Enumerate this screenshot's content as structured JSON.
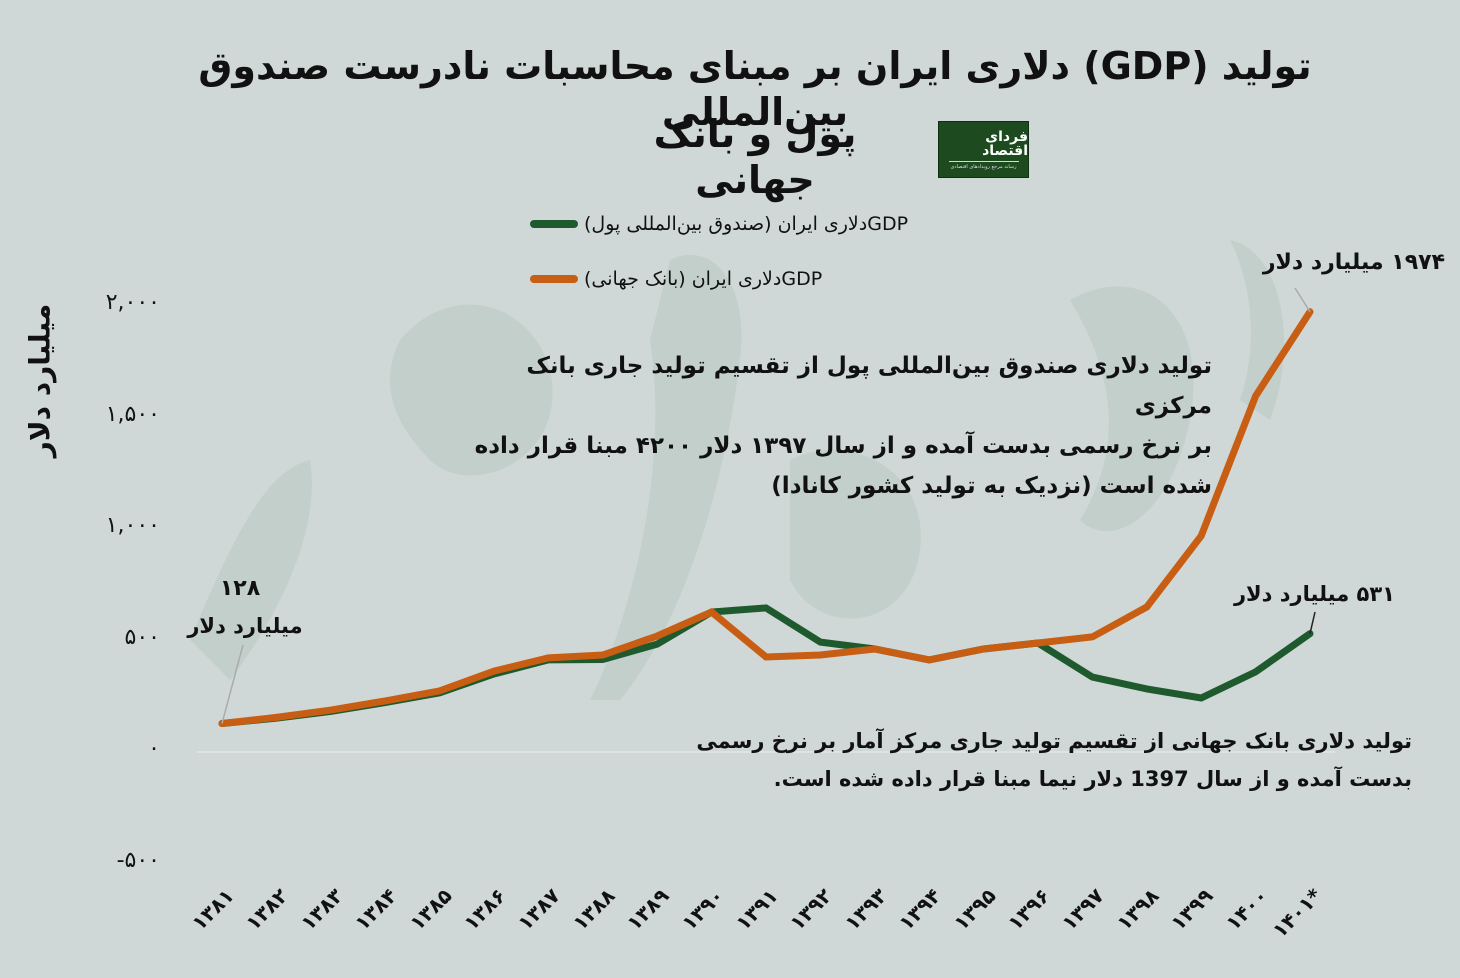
{
  "title": {
    "line1": "تولید (GDP) دلاری ایران بر مبنای محاسبات نادرست صندوق بین‌المللی",
    "line2": "پول و بانک جهانی"
  },
  "logo": {
    "name": "فردای اقتصاد",
    "tagline": "رسانه مرجع رویدادهای اقتصادی",
    "bg_color": "#1d4a1f"
  },
  "legend": [
    {
      "label": "GDPدلاری ایران (صندوق بین‌المللی پول)",
      "color": "#1e5a2e"
    },
    {
      "label": "GDPدلاری ایران (بانک جهانی)",
      "color": "#c85e14"
    }
  ],
  "y_axis": {
    "label": "میلیارد دلار",
    "ticks": [
      {
        "value": 2000,
        "label": "۲,۰۰۰"
      },
      {
        "value": 1500,
        "label": "۱,۵۰۰"
      },
      {
        "value": 1000,
        "label": "۱,۰۰۰"
      },
      {
        "value": 500,
        "label": "۵۰۰"
      },
      {
        "value": 0,
        "label": "۰"
      },
      {
        "value": -500,
        "label": "-۵۰۰"
      }
    ]
  },
  "x_axis": {
    "labels": [
      "۱۳۸۱",
      "۱۳۸۲",
      "۱۳۸۳",
      "۱۳۸۴",
      "۱۳۸۵",
      "۱۳۸۶",
      "۱۳۸۷",
      "۱۳۸۸",
      "۱۳۸۹",
      "۱۳۹۰",
      "۱۳۹۱",
      "۱۳۹۲",
      "۱۳۹۳",
      "۱۳۹۴",
      "۱۳۹۵",
      "۱۳۹۶",
      "۱۳۹۷",
      "۱۳۹۸",
      "۱۳۹۹",
      "۱۴۰۰",
      "۱۴۰۱*"
    ]
  },
  "annotations": {
    "start": {
      "value": "۱۲۸",
      "unit": "میلیارد دلار"
    },
    "wb_end": {
      "text": "۱۹۷۴ میلیارد دلار"
    },
    "imf_end": {
      "text": "۵۳۱ میلیارد دلار"
    }
  },
  "notes": {
    "imf": [
      "تولید دلاری صندوق بین‌المللی پول از تقسیم تولید جاری بانک مرکزی",
      "بر نرخ رسمی بدست آمده و از سال ۱۳۹۷ دلار ۴۲۰۰ مبنا قرار داده",
      "شده است (نزدیک به تولید کشور کانادا)"
    ],
    "wb": [
      "تولید دلاری بانک جهانی از تقسیم تولید جاری مرکز آمار بر نرخ رسمی",
      "بدست آمده و از سال 1397 دلار نیما مبنا قرار داده شده است."
    ]
  },
  "chart_data": {
    "type": "line",
    "title": "تولید (GDP) دلاری ایران بر مبنای محاسبات نادرست صندوق بین‌المللی پول و بانک جهانی",
    "xlabel": "",
    "ylabel": "میلیارد دلار",
    "ylim": [
      -500,
      2000
    ],
    "grid": "zero-line only",
    "legend_position": "top-center",
    "categories": [
      "1381",
      "1382",
      "1383",
      "1384",
      "1385",
      "1386",
      "1387",
      "1388",
      "1389",
      "1390",
      "1391",
      "1392",
      "1393",
      "1394",
      "1395",
      "1396",
      "1397",
      "1398",
      "1399",
      "1400",
      "1401*"
    ],
    "series": [
      {
        "name": "GDP دلاری ایران (صندوق بین‌المللی پول)",
        "color": "#1e5a2e",
        "values": [
          128,
          152,
          182,
          222,
          265,
          350,
          413,
          415,
          484,
          628,
          646,
          493,
          462,
          413,
          462,
          489,
          336,
          283,
          242,
          359,
          531
        ]
      },
      {
        "name": "GDP دلاری ایران (بانک جهانی)",
        "color": "#c85e14",
        "values": [
          128,
          155,
          188,
          229,
          274,
          363,
          422,
          435,
          520,
          628,
          426,
          435,
          462,
          413,
          462,
          489,
          516,
          650,
          969,
          1596,
          1974
        ]
      }
    ],
    "annotations": [
      {
        "x": "1381",
        "text": "128 میلیارد دلار"
      },
      {
        "x": "1401*",
        "series": "World Bank",
        "text": "1974 میلیارد دلار"
      },
      {
        "x": "1401*",
        "series": "IMF",
        "text": "531 میلیارد دلار"
      }
    ]
  }
}
